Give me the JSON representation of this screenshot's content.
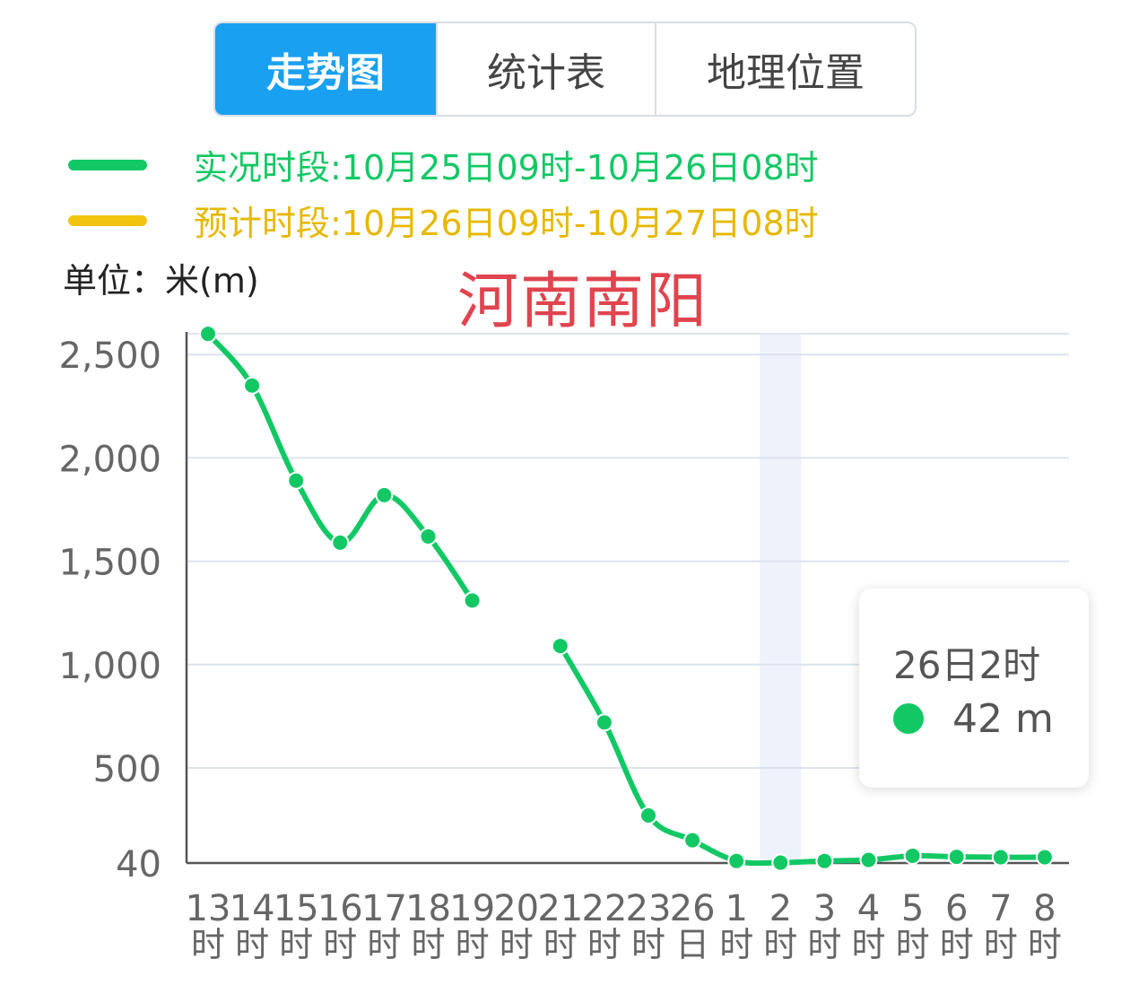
{
  "tabs": [
    {
      "label": "走势图",
      "active": true
    },
    {
      "label": "统计表",
      "active": false
    },
    {
      "label": "地理位置",
      "active": false
    }
  ],
  "legend": {
    "observed": {
      "text": "实况时段:10月25日09时-10月26日08时",
      "color": "#12c865"
    },
    "forecast": {
      "text": "预计时段:10月26日09时-10月27日08时",
      "color": "#f1c40f"
    }
  },
  "unit_label": "单位：米(m)",
  "city_title": "河南南阳",
  "tooltip": {
    "title": "26日2时",
    "value": "42 m",
    "color": "#12c865"
  },
  "colors": {
    "line": "#12c865",
    "grid": "#dde3ee",
    "axis": "#555555",
    "tick_text": "#666666",
    "highlight_band": "#eef2fb"
  },
  "chart_data": {
    "type": "line",
    "ylabel": "米(m)",
    "ylim": [
      0,
      2600
    ],
    "y_ticks": [
      {
        "value": 40,
        "label": "40"
      },
      {
        "value": 500,
        "label": "500"
      },
      {
        "value": 1000,
        "label": "1,000"
      },
      {
        "value": 1500,
        "label": "1,500"
      },
      {
        "value": 2000,
        "label": "2,000"
      },
      {
        "value": 2500,
        "label": "2,500"
      }
    ],
    "categories": [
      {
        "top": "13",
        "bottom": "时"
      },
      {
        "top": "14",
        "bottom": "时"
      },
      {
        "top": "15",
        "bottom": "时"
      },
      {
        "top": "16",
        "bottom": "时"
      },
      {
        "top": "17",
        "bottom": "时"
      },
      {
        "top": "18",
        "bottom": "时"
      },
      {
        "top": "19",
        "bottom": "时"
      },
      {
        "top": "20",
        "bottom": "时"
      },
      {
        "top": "21",
        "bottom": "时"
      },
      {
        "top": "22",
        "bottom": "时"
      },
      {
        "top": "23",
        "bottom": "时"
      },
      {
        "top": "26",
        "bottom": "日"
      },
      {
        "top": "1",
        "bottom": "时"
      },
      {
        "top": "2",
        "bottom": "时"
      },
      {
        "top": "3",
        "bottom": "时"
      },
      {
        "top": "4",
        "bottom": "时"
      },
      {
        "top": "5",
        "bottom": "时"
      },
      {
        "top": "6",
        "bottom": "时"
      },
      {
        "top": "7",
        "bottom": "时"
      },
      {
        "top": "8",
        "bottom": "时"
      }
    ],
    "series": [
      {
        "values": [
          2600,
          2350,
          1890,
          1590,
          1820,
          1620,
          1310,
          null,
          1090,
          720,
          270,
          150,
          50,
          42,
          50,
          55,
          75,
          70,
          68,
          68
        ]
      }
    ],
    "highlight_category_index": 13,
    "grid": true
  }
}
